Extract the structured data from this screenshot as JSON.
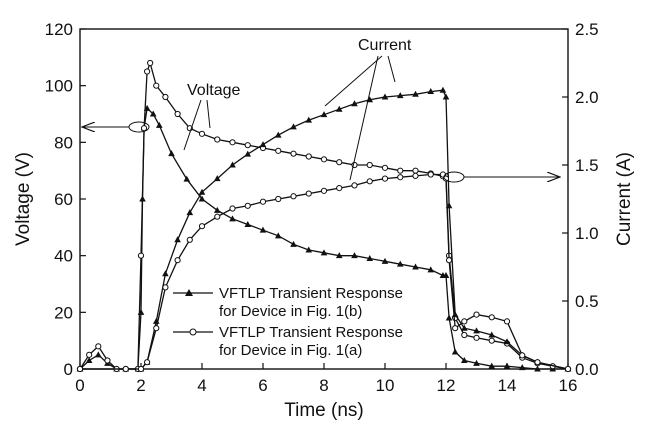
{
  "chart_data": {
    "type": "line",
    "xlabel": "Time (ns)",
    "ylabel_left": "Voltage (V)",
    "ylabel_right": "Current (A)",
    "xlim": [
      0,
      16
    ],
    "ylim_left": [
      0,
      120
    ],
    "ylim_right": [
      0,
      2.5
    ],
    "x_ticks": [
      "0",
      "2",
      "4",
      "6",
      "8",
      "10",
      "12",
      "14",
      "16"
    ],
    "y_left_ticks": [
      "0",
      "20",
      "40",
      "60",
      "80",
      "100",
      "120"
    ],
    "y_right_ticks": [
      "0.0",
      "0.5",
      "1.0",
      "1.5",
      "2.0",
      "2.5"
    ],
    "grid": false,
    "annotations": {
      "voltage": "Voltage",
      "current": "Current"
    },
    "legend": {
      "placement": "bottom-center",
      "entries": [
        {
          "line1": "VFTLP Transient Response",
          "line2": "for Device in Fig. 1(b)",
          "marker": "filled-triangle"
        },
        {
          "line1": "VFTLP Transient Response",
          "line2": "for Device in Fig. 1(a)",
          "marker": "open-circle"
        }
      ]
    },
    "series": [
      {
        "quantity": "voltage",
        "axis": "left",
        "marker": "filled-triangle",
        "x": [
          0,
          0.3,
          0.6,
          0.9,
          1.2,
          1.5,
          1.9,
          2.0,
          2.05,
          2.1,
          2.2,
          2.4,
          2.6,
          3.0,
          3.5,
          4.0,
          4.5,
          5.0,
          5.5,
          6.0,
          6.5,
          7.0,
          7.5,
          8.0,
          8.5,
          9.0,
          9.5,
          10.0,
          10.5,
          11.0,
          11.5,
          11.9,
          12.0,
          12.1,
          12.3,
          12.6,
          13.0,
          13.5,
          14.0,
          14.5,
          15.0,
          15.5,
          16.0
        ],
        "y": [
          0,
          3,
          5,
          2,
          0,
          0,
          0,
          20,
          60,
          85,
          92,
          90,
          86,
          76,
          67,
          60,
          56,
          53,
          51,
          49,
          47,
          44,
          42,
          41,
          40,
          40,
          39,
          38,
          37,
          36,
          35,
          33,
          33,
          18,
          6,
          3,
          2,
          1,
          1,
          0.5,
          0,
          0,
          0
        ]
      },
      {
        "quantity": "voltage",
        "axis": "left",
        "marker": "open-circle",
        "x": [
          0,
          0.3,
          0.6,
          0.9,
          1.2,
          1.5,
          1.9,
          2.0,
          2.1,
          2.2,
          2.3,
          2.5,
          2.8,
          3.2,
          3.6,
          4.0,
          4.5,
          5.0,
          5.5,
          6.0,
          6.5,
          7.0,
          7.5,
          8.0,
          8.5,
          9.0,
          9.5,
          10.0,
          10.5,
          11.0,
          11.5,
          11.9,
          12.0,
          12.1,
          12.3,
          12.6,
          13.0,
          13.5,
          14.0,
          14.5,
          15.0,
          15.5,
          16.0
        ],
        "y": [
          0,
          5,
          8,
          3,
          0,
          0,
          0,
          40,
          85,
          105,
          108,
          100,
          96,
          90,
          85,
          83,
          81,
          80,
          79,
          78,
          77,
          76,
          75,
          74,
          73,
          72,
          72,
          71,
          70,
          70,
          69,
          68,
          68,
          40,
          18,
          12,
          11,
          10,
          9,
          4,
          2,
          1,
          0
        ]
      },
      {
        "quantity": "current",
        "axis": "right",
        "marker": "filled-triangle",
        "x": [
          0,
          1.5,
          2.0,
          2.2,
          2.5,
          2.8,
          3.2,
          3.6,
          4.0,
          4.5,
          5.0,
          5.5,
          6.0,
          6.5,
          7.0,
          7.5,
          8.0,
          8.5,
          9.0,
          9.5,
          10.0,
          10.5,
          11.0,
          11.5,
          11.9,
          12.0,
          12.1,
          12.3,
          12.6,
          13.0,
          13.5,
          14.0,
          14.5,
          15.0,
          16.0
        ],
        "y": [
          0,
          0,
          0,
          0.05,
          0.35,
          0.7,
          0.95,
          1.15,
          1.3,
          1.4,
          1.5,
          1.58,
          1.65,
          1.72,
          1.78,
          1.83,
          1.87,
          1.91,
          1.95,
          1.98,
          2.0,
          2.01,
          2.02,
          2.04,
          2.05,
          2.0,
          1.2,
          0.4,
          0.3,
          0.28,
          0.25,
          0.2,
          0.1,
          0.05,
          0
        ]
      },
      {
        "quantity": "current",
        "axis": "right",
        "marker": "open-circle",
        "x": [
          0,
          1.5,
          2.0,
          2.2,
          2.5,
          2.8,
          3.2,
          3.6,
          4.0,
          4.5,
          5.0,
          5.5,
          6.0,
          6.5,
          7.0,
          7.5,
          8.0,
          8.5,
          9.0,
          9.5,
          10.0,
          10.5,
          11.0,
          11.5,
          11.9,
          12.0,
          12.1,
          12.3,
          12.6,
          13.0,
          13.5,
          14.0,
          14.5,
          15.0,
          16.0
        ],
        "y": [
          0,
          0,
          0,
          0.05,
          0.3,
          0.6,
          0.8,
          0.95,
          1.05,
          1.12,
          1.18,
          1.2,
          1.23,
          1.25,
          1.27,
          1.29,
          1.31,
          1.33,
          1.35,
          1.38,
          1.4,
          1.41,
          1.42,
          1.43,
          1.43,
          1.4,
          0.8,
          0.3,
          0.35,
          0.4,
          0.38,
          0.35,
          0.1,
          0.05,
          0
        ]
      }
    ]
  }
}
